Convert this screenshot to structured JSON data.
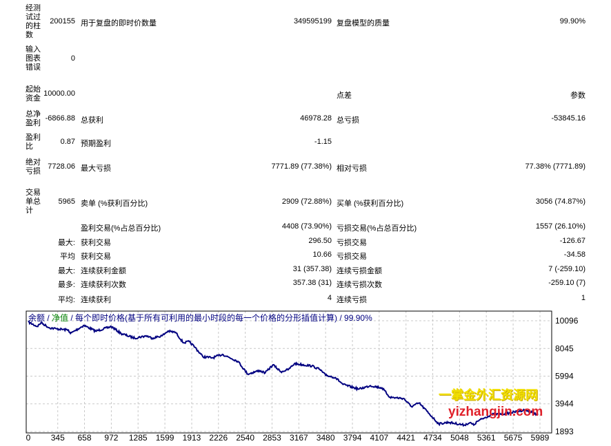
{
  "stats": [
    {
      "label": "经测试过的柱数",
      "value": "200155",
      "label2": "用于复盘的即时价数量",
      "value2": "349595199",
      "label3": "复盘模型的质量",
      "value3": "99.90%"
    },
    {
      "label": "输入图表错误",
      "value": "0",
      "label2": "",
      "value2": "",
      "label3": "",
      "value3": ""
    },
    {
      "label": "起始资金",
      "value": "10000.00",
      "label2": "",
      "value2": "",
      "label3": "点差",
      "value3": "参数"
    },
    {
      "label": "总净盈利",
      "value": "-6866.88",
      "label2": "总获利",
      "value2": "46978.28",
      "label3": "总亏损",
      "value3": "-53845.16"
    },
    {
      "label": "盈利比",
      "value": "0.87",
      "label2": "预期盈利",
      "value2": "-1.15",
      "label3": "",
      "value3": ""
    },
    {
      "label": "绝对亏损",
      "value": "7728.06",
      "label2": "最大亏损",
      "value2": "7771.89 (77.38%)",
      "label3": "相对亏损",
      "value3": "77.38% (7771.89)"
    },
    {
      "label": "交易单总计",
      "value": "5965",
      "label2": "卖单 (%获利百分比)",
      "value2": "2909 (72.88%)",
      "label3": "买单 (%获利百分比)",
      "value3": "3056 (74.87%)"
    }
  ],
  "details": [
    {
      "prefix": "",
      "label2": "盈利交易(%占总百分比)",
      "value2": "4408 (73.90%)",
      "label3": "亏损交易(%占总百分比)",
      "value3": "1557 (26.10%)"
    },
    {
      "prefix": "最大:",
      "label2": "获利交易",
      "value2": "296.50",
      "label3": "亏损交易",
      "value3": "-126.67"
    },
    {
      "prefix": "平均",
      "label2": "获利交易",
      "value2": "10.66",
      "label3": "亏损交易",
      "value3": "-34.58"
    },
    {
      "prefix": "最大:",
      "label2": "连续获利金额",
      "value2": "31 (357.38)",
      "label3": "连续亏损金额",
      "value3": "7 (-259.10)"
    },
    {
      "prefix": "最多:",
      "label2": "连续获利次数",
      "value2": "357.38 (31)",
      "label3": "连续亏损次数",
      "value3": "-259.10 (7)"
    },
    {
      "prefix": "平均:",
      "label2": "连续获利",
      "value2": "4",
      "label3": "连续亏损",
      "value3": "1"
    }
  ],
  "chart_legend": {
    "balance": "余额",
    "sep1": " / ",
    "equity": "净值",
    "rest": " / 每个即时价格(基于所有可利用的最小时段的每一个价格的分形插值计算) / 99.90%"
  },
  "watermark": {
    "line1": "一掌金外汇资源网",
    "line2": "yizhangjin.com"
  },
  "chart_data": {
    "type": "line",
    "title": "",
    "xlabel": "",
    "ylabel": "",
    "x_ticks": [
      0,
      345,
      658,
      972,
      1285,
      1599,
      1913,
      2226,
      2540,
      2853,
      3167,
      3480,
      3794,
      4107,
      4421,
      4734,
      5048,
      5361,
      5675,
      5989
    ],
    "y_ticks": [
      10096,
      8045,
      5994,
      3944,
      1893
    ],
    "xlim": [
      0,
      5989
    ],
    "ylim": [
      1893,
      10096
    ],
    "grid": true,
    "colors": {
      "balance": "#000080",
      "equity": "#008000",
      "grid": "#c8c8c8"
    },
    "series": [
      {
        "name": "余额",
        "color": "#000080",
        "points": [
          [
            0,
            10000
          ],
          [
            105,
            9667
          ],
          [
            150,
            9960
          ],
          [
            242,
            9581
          ],
          [
            333,
            9495
          ],
          [
            470,
            9410
          ],
          [
            493,
            9152
          ],
          [
            652,
            9753
          ],
          [
            789,
            9324
          ],
          [
            972,
            9667
          ],
          [
            1086,
            9152
          ],
          [
            1245,
            8809
          ],
          [
            1382,
            8980
          ],
          [
            1450,
            8809
          ],
          [
            1565,
            8980
          ],
          [
            1633,
            9324
          ],
          [
            1724,
            9238
          ],
          [
            1815,
            8466
          ],
          [
            1884,
            8552
          ],
          [
            1952,
            8122
          ],
          [
            2043,
            7436
          ],
          [
            2157,
            7350
          ],
          [
            2272,
            7607
          ],
          [
            2454,
            7092
          ],
          [
            2568,
            6149
          ],
          [
            2705,
            6406
          ],
          [
            2773,
            6234
          ],
          [
            2864,
            6835
          ],
          [
            2956,
            6320
          ],
          [
            3047,
            6492
          ],
          [
            3115,
            6921
          ],
          [
            3320,
            6749
          ],
          [
            3412,
            6492
          ],
          [
            3480,
            6063
          ],
          [
            3594,
            5891
          ],
          [
            3685,
            5376
          ],
          [
            3868,
            5033
          ],
          [
            4005,
            5290
          ],
          [
            4142,
            5119
          ],
          [
            4233,
            4432
          ],
          [
            4393,
            4346
          ],
          [
            4484,
            3746
          ],
          [
            4575,
            4003
          ],
          [
            4690,
            3231
          ],
          [
            4804,
            2459
          ],
          [
            4918,
            2580
          ],
          [
            5100,
            2374
          ],
          [
            5168,
            2545
          ],
          [
            5214,
            2374
          ],
          [
            5260,
            2665
          ],
          [
            5420,
            3145
          ],
          [
            5602,
            3231
          ],
          [
            5807,
            3489
          ],
          [
            5900,
            3317
          ],
          [
            5965,
            3133
          ]
        ]
      }
    ]
  }
}
